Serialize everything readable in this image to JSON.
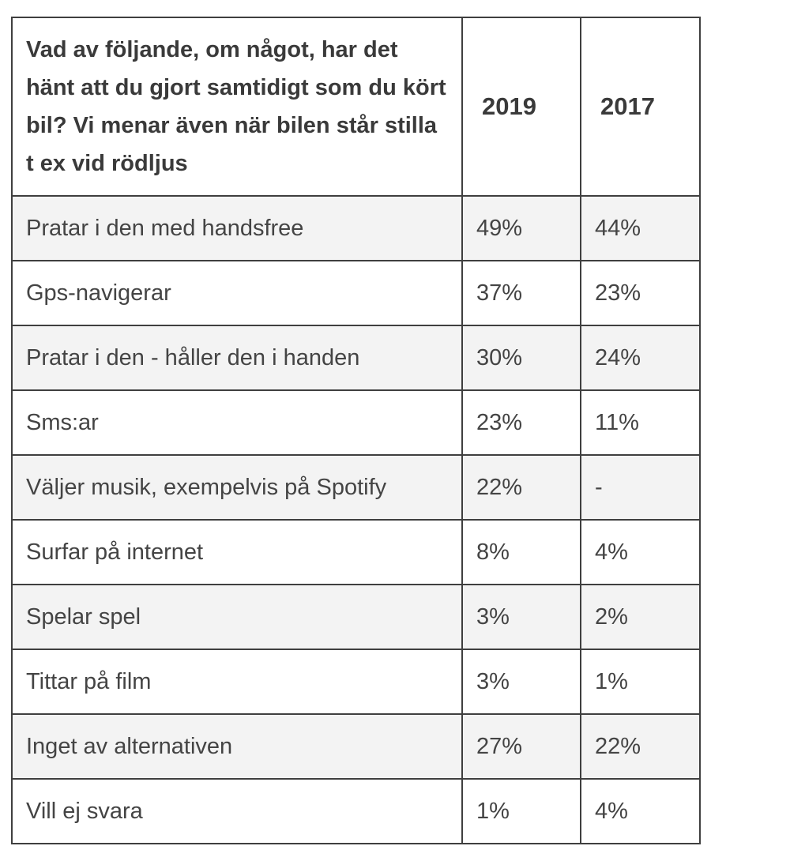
{
  "table": {
    "header": {
      "question": "Vad av följande, om något, har det hänt att du gjort samtidigt som du kört bil? Vi menar även när bilen står stilla t ex vid rödljus",
      "year_a": "2019",
      "year_b": "2017"
    },
    "rows": [
      {
        "label": "Pratar i den med handsfree",
        "v2019": "49%",
        "v2017": "44%"
      },
      {
        "label": "Gps-navigerar",
        "v2019": "37%",
        "v2017": "23%"
      },
      {
        "label": "Pratar i den - håller den i handen",
        "v2019": "30%",
        "v2017": "24%"
      },
      {
        "label": "Sms:ar",
        "v2019": "23%",
        "v2017": "11%"
      },
      {
        "label": "Väljer musik, exempelvis på Spotify",
        "v2019": "22%",
        "v2017": "-"
      },
      {
        "label": "Surfar på internet",
        "v2019": "8%",
        "v2017": "4%"
      },
      {
        "label": "Spelar spel",
        "v2019": "3%",
        "v2017": "2%"
      },
      {
        "label": "Tittar på film",
        "v2019": "3%",
        "v2017": "1%"
      },
      {
        "label": "Inget av alternativen",
        "v2019": "27%",
        "v2017": "22%"
      },
      {
        "label": "Vill ej svara",
        "v2019": "1%",
        "v2017": "4%"
      }
    ]
  }
}
